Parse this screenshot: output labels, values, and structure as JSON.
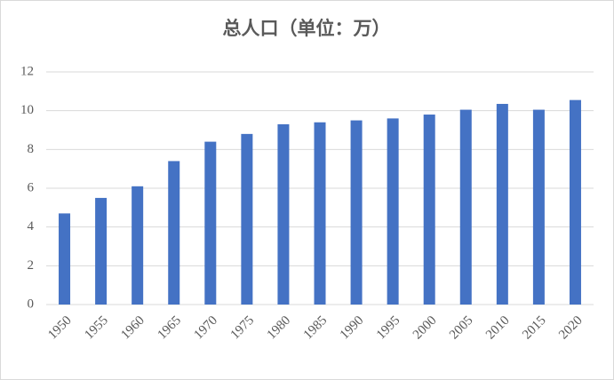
{
  "chart_data": {
    "type": "bar",
    "title": "总人口（单位：万）",
    "categories": [
      "1950",
      "1955",
      "1960",
      "1965",
      "1970",
      "1975",
      "1980",
      "1985",
      "1990",
      "1995",
      "2000",
      "2005",
      "2010",
      "2015",
      "2020"
    ],
    "values": [
      4.7,
      5.5,
      6.1,
      7.4,
      8.4,
      8.8,
      9.3,
      9.4,
      9.5,
      9.6,
      9.8,
      10.05,
      10.35,
      10.05,
      10.55
    ],
    "color": "#4472c4",
    "ylim": [
      0,
      12
    ],
    "yticks": [
      0,
      2,
      4,
      6,
      8,
      10,
      12
    ],
    "grid": true
  }
}
